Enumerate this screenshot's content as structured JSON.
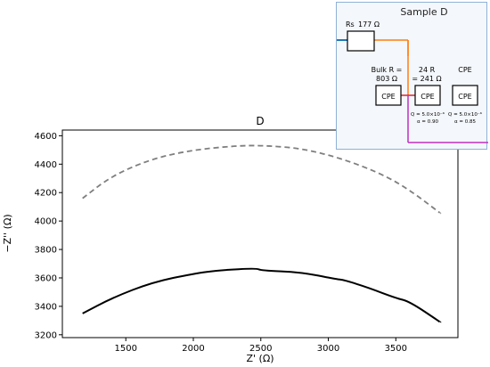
{
  "chart_data": {
    "type": "line",
    "title": "D",
    "xlabel": "Z' (Ω)",
    "ylabel": "−Z'' (Ω)",
    "xlim": [
      1030,
      3960
    ],
    "ylim": [
      3180,
      4640
    ],
    "xticks": [
      1500,
      2000,
      2500,
      3000,
      3500
    ],
    "yticks": [
      3200,
      3400,
      3600,
      3800,
      4000,
      4200,
      4400,
      4600
    ],
    "grid": false,
    "series": [
      {
        "style": "dashed",
        "color": "#7f7f7f",
        "points": [
          [
            1180,
            4160
          ],
          [
            1400,
            4320
          ],
          [
            1700,
            4440
          ],
          [
            2000,
            4500
          ],
          [
            2300,
            4528
          ],
          [
            2500,
            4533
          ],
          [
            2800,
            4512
          ],
          [
            3100,
            4440
          ],
          [
            3400,
            4330
          ],
          [
            3600,
            4220
          ],
          [
            3830,
            4055
          ]
        ]
      },
      {
        "style": "solid",
        "color": "#000000",
        "points": [
          [
            1180,
            3350
          ],
          [
            1400,
            3460
          ],
          [
            1700,
            3570
          ],
          [
            2000,
            3630
          ],
          [
            2200,
            3655
          ],
          [
            2470,
            3668
          ],
          [
            2500,
            3652
          ],
          [
            2800,
            3640
          ],
          [
            3050,
            3592
          ],
          [
            3120,
            3585
          ],
          [
            3300,
            3530
          ],
          [
            3500,
            3458
          ],
          [
            3600,
            3435
          ],
          [
            3830,
            3288
          ]
        ]
      }
    ]
  },
  "inset": {
    "title": "Sample D",
    "rs_label": "Rs",
    "rs_value": "177 Ω",
    "bulk_line1": "Bulk R =",
    "bulk_line2": "803 Ω",
    "gb_line1": "24 R",
    "gb_line2": "= 241 Ω",
    "cpe_header": "CPE",
    "cpe_box": "CPE",
    "q1": "Q = 5.0×10⁻⁶",
    "a1": "α = 0.90",
    "q2": "Q = 5.0×10⁻⁶",
    "a2": "α = 0.85",
    "colors": {
      "blue": "#1f77b4",
      "orange": "#ff7f0e",
      "red": "#d62728",
      "magenta": "#c030c0"
    }
  }
}
